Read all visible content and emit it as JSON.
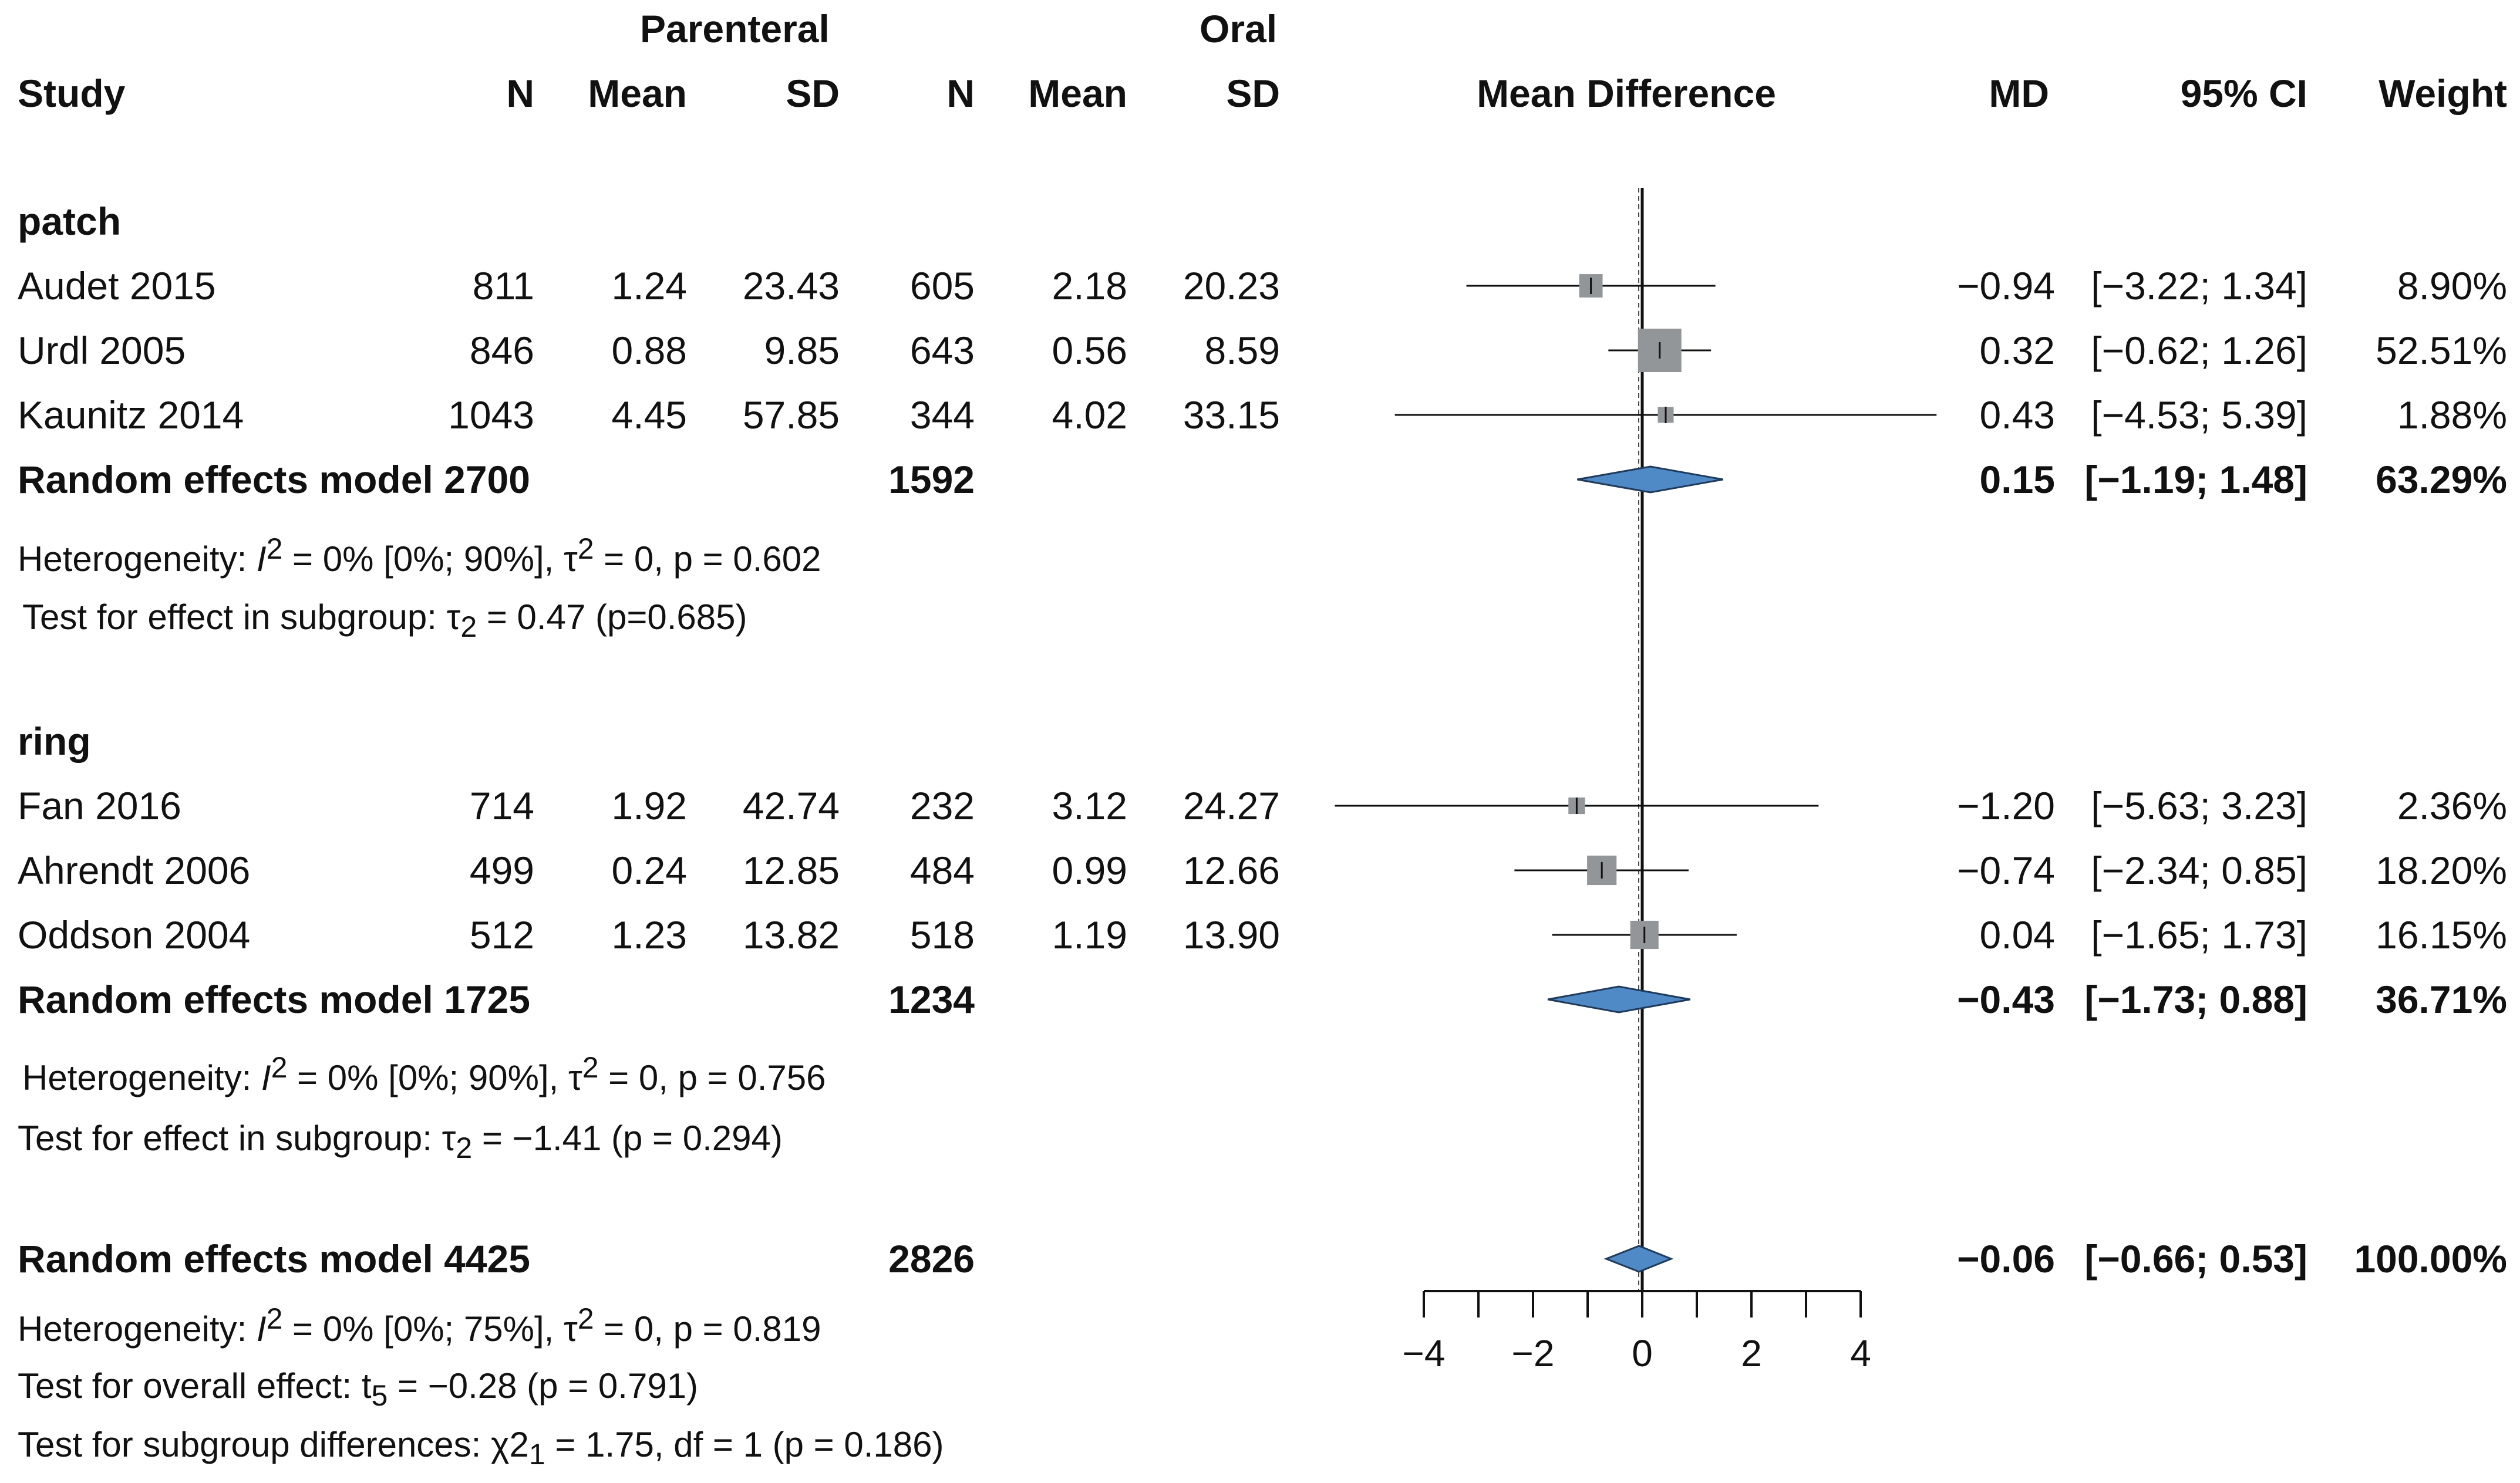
{
  "chart_data": {
    "type": "forest",
    "header": {
      "group1": "Parenteral",
      "group2": "Oral",
      "study": "Study",
      "n": "N",
      "mean": "Mean",
      "sd": "SD",
      "plot_label": "Mean Difference",
      "md": "MD",
      "ci": "95% CI",
      "weight": "Weight"
    },
    "subgroups": [
      {
        "name": "patch",
        "studies": [
          {
            "study": "Audet 2015",
            "n1": "811",
            "mean1": "1.24",
            "sd1": "23.43",
            "n2": "605",
            "mean2": "2.18",
            "sd2": "20.23",
            "md": "−0.94",
            "ci": "[−3.22; 1.34]",
            "weight": "8.90%",
            "md_val": -0.94,
            "lo": -3.22,
            "hi": 1.34,
            "w": 8.9
          },
          {
            "study": "Urdl 2005",
            "n1": "846",
            "mean1": "0.88",
            "sd1": "9.85",
            "n2": "643",
            "mean2": "0.56",
            "sd2": "8.59",
            "md": "0.32",
            "ci": "[−0.62; 1.26]",
            "weight": "52.51%",
            "md_val": 0.32,
            "lo": -0.62,
            "hi": 1.26,
            "w": 52.51
          },
          {
            "study": "Kaunitz 2014",
            "n1": "1043",
            "mean1": "4.45",
            "sd1": "57.85",
            "n2": "344",
            "mean2": "4.02",
            "sd2": "33.15",
            "md": "0.43",
            "ci": "[−4.53; 5.39]",
            "weight": "1.88%",
            "md_val": 0.43,
            "lo": -4.53,
            "hi": 5.39,
            "w": 1.88
          }
        ],
        "pooled": {
          "label": "Random effects model",
          "n1": "2700",
          "n2": "1592",
          "md": "0.15",
          "ci": "[−1.19; 1.48]",
          "weight": "63.29%",
          "md_val": 0.15,
          "lo": -1.19,
          "hi": 1.48
        },
        "heterogeneity": {
          "pre": "Heterogeneity: ",
          "i": "I",
          "sup": "2",
          "mid": " = 0% [0%; 90%], τ",
          "sup2": "2",
          "post": " = 0, p = 0.602"
        },
        "test": {
          "pre": "Test for effect in subgroup: τ",
          "sub": "2",
          "post": " = 0.47 (p=0.685)"
        }
      },
      {
        "name": "ring",
        "studies": [
          {
            "study": "Fan 2016",
            "n1": "714",
            "mean1": "1.92",
            "sd1": "42.74",
            "n2": "232",
            "mean2": "3.12",
            "sd2": "24.27",
            "md": "−1.20",
            "ci": "[−5.63; 3.23]",
            "weight": "2.36%",
            "md_val": -1.2,
            "lo": -5.63,
            "hi": 3.23,
            "w": 2.36
          },
          {
            "study": "Ahrendt 2006",
            "n1": "499",
            "mean1": "0.24",
            "sd1": "12.85",
            "n2": "484",
            "mean2": "0.99",
            "sd2": "12.66",
            "md": "−0.74",
            "ci": "[−2.34; 0.85]",
            "weight": "18.20%",
            "md_val": -0.74,
            "lo": -2.34,
            "hi": 0.85,
            "w": 18.2
          },
          {
            "study": "Oddson 2004",
            "n1": "512",
            "mean1": "1.23",
            "sd1": "13.82",
            "n2": "518",
            "mean2": "1.19",
            "sd2": "13.90",
            "md": "0.04",
            "ci": "[−1.65; 1.73]",
            "weight": "16.15%",
            "md_val": 0.04,
            "lo": -1.65,
            "hi": 1.73,
            "w": 16.15
          }
        ],
        "pooled": {
          "label": "Random effects model",
          "n1": "1725",
          "n2": "1234",
          "md": "−0.43",
          "ci": "[−1.73; 0.88]",
          "weight": "36.71%",
          "md_val": -0.43,
          "lo": -1.73,
          "hi": 0.88
        },
        "heterogeneity": {
          "pre": "Heterogeneity: ",
          "i": "I",
          "sup": "2",
          "mid": " = 0% [0%; 90%], τ",
          "sup2": "2",
          "post": " = 0, p = 0.756"
        },
        "test": {
          "pre": "Test for effect in subgroup: τ",
          "sub": "2",
          "post": " = −1.41 (p = 0.294)"
        }
      }
    ],
    "overall": {
      "label": "Random effects model",
      "n1": "4425",
      "n2": "2826",
      "md": "−0.06",
      "ci": "[−0.66; 0.53]",
      "weight": "100.00%",
      "md_val": -0.06,
      "lo": -0.66,
      "hi": 0.53,
      "heterogeneity": {
        "pre": "Heterogeneity: ",
        "i": "I",
        "sup": "2",
        "mid": " = 0% [0%; 75%], τ",
        "sup2": "2",
        "post": " = 0, p = 0.819"
      },
      "test_overall": {
        "pre": "Test for overall effect: t",
        "sub": "5",
        "post": " = −0.28 (p = 0.791)"
      },
      "test_subgroup": {
        "pre": "Test for subgroup differences: χ2",
        "sub": "1",
        "post": " = 1.75, df = 1 (p = 0.186)"
      }
    },
    "x_axis": {
      "ticks": [
        -4,
        -2,
        0,
        2,
        4
      ],
      "tick_labels": [
        "−4",
        "−2",
        "0",
        "2",
        "4"
      ],
      "xlim": [
        -4,
        4
      ]
    },
    "colors": {
      "diamond_fill": "#4f8ac7",
      "diamond_stroke": "#1f3a5a",
      "square": "#939699",
      "line": "#111111"
    }
  }
}
